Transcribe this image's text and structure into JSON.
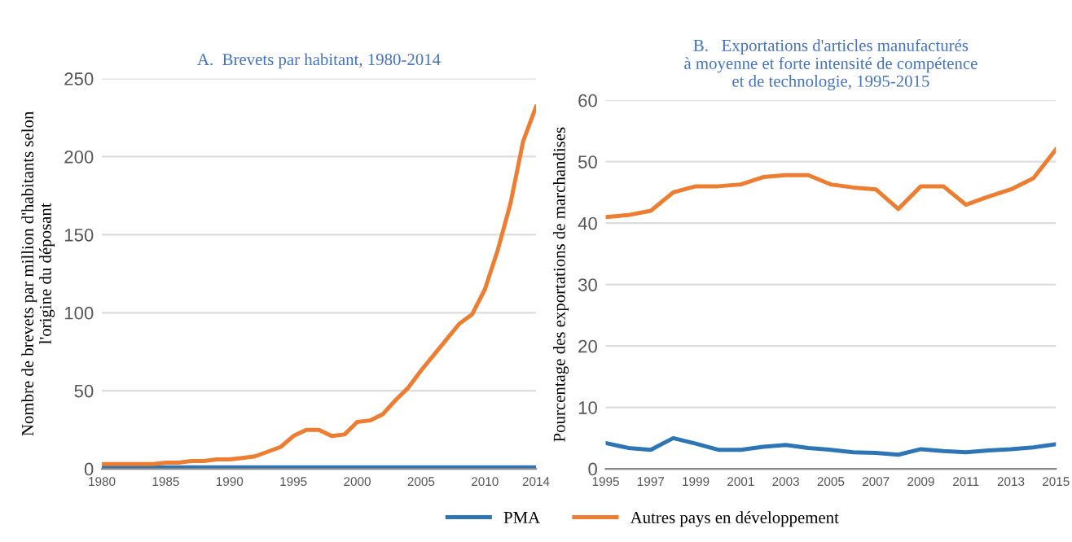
{
  "chart_data": [
    {
      "type": "line",
      "title": "A.  Brevets par habitant, 1980-2014",
      "ylabel": "Nombre de brevets par million d'habitants selon\nl'origine du déposant",
      "x": [
        1980,
        1981,
        1982,
        1983,
        1984,
        1985,
        1986,
        1987,
        1988,
        1989,
        1990,
        1991,
        1992,
        1993,
        1994,
        1995,
        1996,
        1997,
        1998,
        1999,
        2000,
        2001,
        2002,
        2003,
        2004,
        2005,
        2006,
        2007,
        2008,
        2009,
        2010,
        2011,
        2012,
        2013,
        2014
      ],
      "series": [
        {
          "color": "#2e75b6",
          "values": [
            1,
            1,
            1,
            1,
            1,
            1,
            1,
            1,
            1,
            1,
            1,
            1,
            1,
            1,
            1,
            1,
            1,
            1,
            1,
            1,
            1,
            1,
            1,
            1,
            1,
            1,
            1,
            1,
            1,
            1,
            1,
            1,
            1,
            1,
            1
          ]
        },
        {
          "color": "#ed7d31",
          "values": [
            3,
            3,
            3,
            3,
            3,
            4,
            4,
            5,
            5,
            6,
            6,
            7,
            8,
            11,
            14,
            21,
            25,
            25,
            21,
            22,
            30,
            31,
            35,
            44,
            52,
            63,
            73,
            83,
            93,
            99,
            115,
            140,
            170,
            210,
            232
          ]
        }
      ],
      "xlim": [
        1980,
        2014
      ],
      "xticks": [
        1980,
        1985,
        1990,
        1995,
        2000,
        2005,
        2010,
        2014
      ],
      "ylim": [
        0,
        250
      ],
      "yticks": [
        0,
        50,
        100,
        150,
        200,
        250
      ],
      "grid": "y"
    },
    {
      "type": "line",
      "title": "B.   Exportations d'articles manufacturés\nà moyenne et forte intensité de compétence\net de technologie, 1995-2015",
      "ylabel": "Pourcentage des exportations de marchandises",
      "x": [
        1995,
        1996,
        1997,
        1998,
        1999,
        2000,
        2001,
        2002,
        2003,
        2004,
        2005,
        2006,
        2007,
        2008,
        2009,
        2010,
        2011,
        2012,
        2013,
        2014,
        2015
      ],
      "series": [
        {
          "name": "PMA",
          "color": "#2e75b6",
          "values": [
            4.2,
            3.4,
            3.1,
            5,
            4.1,
            3.1,
            3.1,
            3.6,
            3.9,
            3.4,
            3.1,
            2.7,
            2.6,
            2.3,
            3.2,
            2.9,
            2.7,
            3.0,
            3.2,
            3.5,
            4.0
          ]
        },
        {
          "name": "Autres pays en développement",
          "color": "#ed7d31",
          "values": [
            41,
            41.3,
            42,
            45,
            46,
            46,
            46.3,
            47.5,
            47.8,
            47.8,
            46.3,
            45.8,
            45.5,
            42.3,
            46,
            46,
            43,
            44.3,
            45.5,
            47.3,
            52
          ]
        }
      ],
      "xlim": [
        1995,
        2015
      ],
      "xticks": [
        1995,
        1997,
        1999,
        2001,
        2003,
        2005,
        2007,
        2009,
        2011,
        2013,
        2015
      ],
      "ylim": [
        0,
        60
      ],
      "yticks": [
        0,
        10,
        20,
        30,
        40,
        50,
        60
      ],
      "grid": "y",
      "legend": "bottom"
    }
  ]
}
